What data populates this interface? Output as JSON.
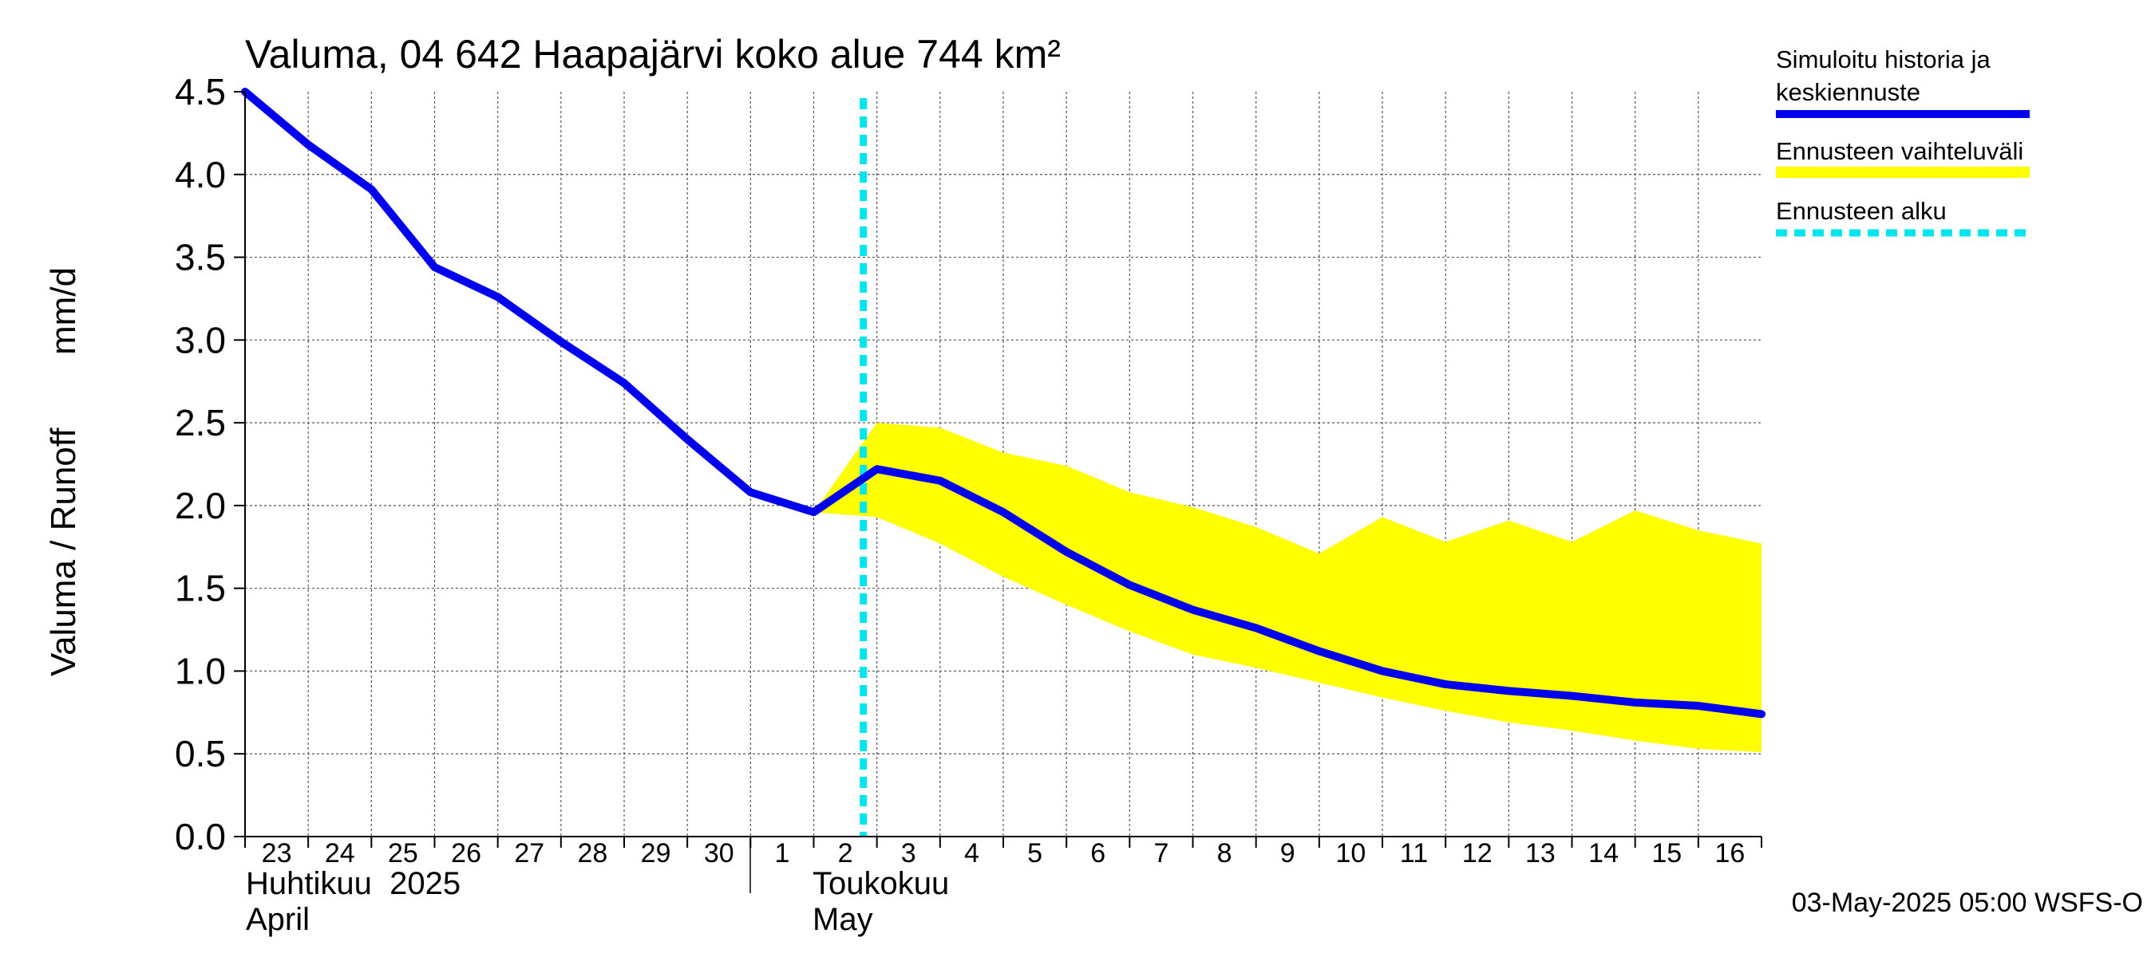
{
  "chart_data": {
    "type": "line",
    "title": "Valuma, 04 642 Haapajärvi koko alue 744 km²",
    "ylabel_left": "Valuma / Runoff",
    "ylabel_right": "mm/d",
    "ylim": [
      0,
      4.5
    ],
    "yticks": [
      "0.0",
      "0.5",
      "1.0",
      "1.5",
      "2.0",
      "2.5",
      "3.0",
      "3.5",
      "4.0",
      "4.5"
    ],
    "ytick_values": [
      0,
      0.5,
      1.0,
      1.5,
      2.0,
      2.5,
      3.0,
      3.5,
      4.0,
      4.5
    ],
    "x_day_labels": [
      "23",
      "24",
      "25",
      "26",
      "27",
      "28",
      "29",
      "30",
      "1",
      "2",
      "3",
      "4",
      "5",
      "6",
      "7",
      "8",
      "9",
      "10",
      "11",
      "12",
      "13",
      "14",
      "15",
      "16"
    ],
    "month_labels": {
      "april_fi": "Huhtikuu  2025",
      "april_en": "April",
      "may_fi": "Toukokuu",
      "may_en": "May"
    },
    "forecast_start_index": 10,
    "series": [
      {
        "name": "Simuloitu historia ja keskiennuste",
        "color": "#0000ee",
        "x_index": [
          0,
          1,
          2,
          3,
          4,
          5,
          6,
          7,
          8,
          9,
          10,
          11,
          12,
          13,
          14,
          15,
          16,
          17,
          18,
          19,
          20,
          21,
          22,
          23,
          24
        ],
        "values": [
          4.5,
          4.18,
          3.91,
          3.44,
          3.26,
          2.99,
          2.74,
          2.4,
          2.08,
          1.96,
          2.22,
          2.15,
          1.96,
          1.72,
          1.52,
          1.37,
          1.26,
          1.12,
          1.0,
          0.92,
          0.88,
          0.85,
          0.81,
          0.79,
          0.74
        ]
      }
    ],
    "band": {
      "name": "Ennusteen vaihteluväli",
      "color": "#ffff00",
      "x_index": [
        9,
        10,
        11,
        12,
        13,
        14,
        15,
        16,
        17,
        18,
        19,
        20,
        21,
        22,
        23,
        24
      ],
      "upper": [
        1.96,
        2.5,
        2.47,
        2.32,
        2.24,
        2.08,
        1.99,
        1.87,
        1.71,
        1.93,
        1.78,
        1.91,
        1.78,
        1.97,
        1.85,
        1.77
      ],
      "lower": [
        1.96,
        1.93,
        1.77,
        1.57,
        1.4,
        1.24,
        1.1,
        1.02,
        0.93,
        0.84,
        0.76,
        0.69,
        0.64,
        0.58,
        0.53,
        0.51
      ]
    },
    "forecast_line": {
      "name": "Ennusteen alku",
      "color": "#00e5ee"
    },
    "grid": true,
    "legend_position": "right"
  },
  "legend": {
    "item1_line1": "Simuloitu historia ja",
    "item1_line2": "keskiennuste",
    "item2": "Ennusteen vaihteluväli",
    "item3": "Ennusteen alku"
  },
  "footer": "03-May-2025 05:00 WSFS-O"
}
